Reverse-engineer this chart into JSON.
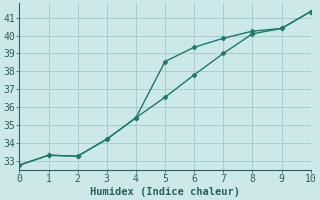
{
  "xlabel": "Humidex (Indice chaleur)",
  "xlim": [
    0,
    10
  ],
  "ylim": [
    32.5,
    41.8
  ],
  "yticks": [
    33,
    34,
    35,
    36,
    37,
    38,
    39,
    40,
    41
  ],
  "xticks": [
    0,
    1,
    2,
    3,
    4,
    5,
    6,
    7,
    8,
    9,
    10
  ],
  "background_color": "#cce8e8",
  "grid_color": "#aacccc",
  "line_color": "#1a7a6e",
  "line1_x": [
    0,
    1,
    2,
    3,
    4,
    5,
    6,
    7,
    8,
    9,
    10
  ],
  "line1_y": [
    32.75,
    33.3,
    33.25,
    34.2,
    35.4,
    38.55,
    39.35,
    39.85,
    40.25,
    40.4,
    41.35
  ],
  "line2_x": [
    0,
    1,
    2,
    3,
    4,
    5,
    6,
    7,
    8,
    9,
    10
  ],
  "line2_y": [
    32.75,
    33.3,
    33.25,
    34.2,
    35.4,
    36.55,
    37.8,
    39.0,
    40.1,
    40.4,
    41.35
  ],
  "marker": "D",
  "marker_size": 2.5,
  "linewidth": 1.0,
  "font_color": "#2a6060",
  "font_size_label": 7.5,
  "font_size_tick": 7
}
